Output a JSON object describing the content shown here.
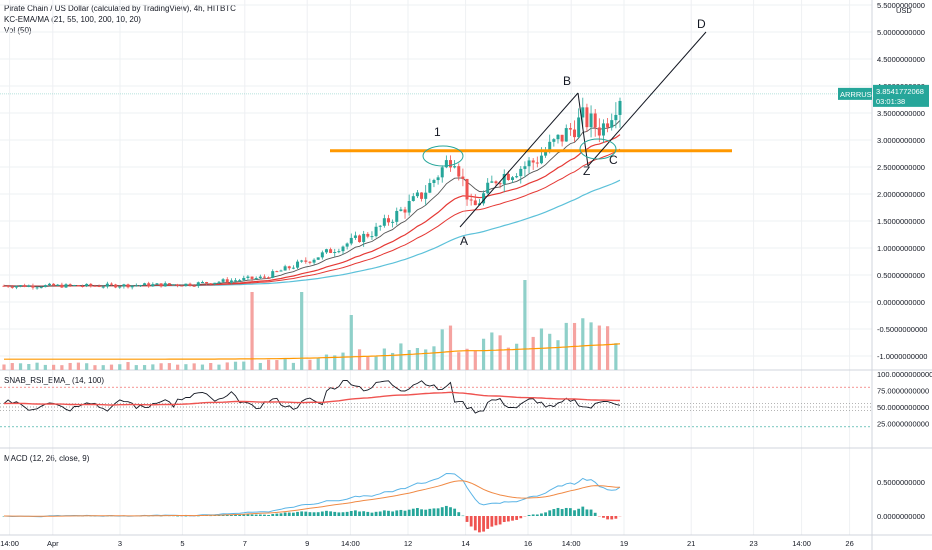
{
  "header": {
    "title": "Pirate Chain / US Dollar (calculated by TradingView), 4h, HITBTC",
    "indicator1": "KC-EMA/MA (21, 55, 100, 200, 10, 20)",
    "indicator2": "Vol (50)"
  },
  "price_axis": {
    "currency": "USD",
    "ticks": [
      "5.5000000000",
      "5.0000000000",
      "4.5000000000",
      "4.0000000000",
      "3.5000000000",
      "3.0000000000",
      "2.5000000000",
      "2.0000000000",
      "1.5000000000",
      "1.0000000000",
      "0.5000000000",
      "0.0000000000",
      "-0.5000000000",
      "-1.0000000000"
    ],
    "tick_values": [
      5.5,
      5.0,
      4.5,
      4.0,
      3.5,
      3.0,
      2.5,
      2.0,
      1.5,
      1.0,
      0.5,
      0.0,
      -0.5,
      -1.0
    ],
    "last_label": {
      "symbol": "ARRRUSD",
      "price": "3.8541772068",
      "countdown": "03:01:38"
    }
  },
  "rsi_panel": {
    "title": "SNAB_RSI_EMA_ (14, 100)",
    "ticks": [
      "100.0000000000",
      "75.0000000000",
      "50.0000000000",
      "25.0000000000"
    ],
    "tick_values": [
      100,
      75,
      50,
      25
    ]
  },
  "macd_panel": {
    "title": "MACD (12, 26, close, 9)",
    "ticks": [
      "0.5000000000",
      "0.0000000000"
    ],
    "tick_values": [
      0.5,
      0.0
    ]
  },
  "time_axis": {
    "labels": [
      "14:00",
      "Apr",
      "3",
      "5",
      "7",
      "9",
      "14:00",
      "12",
      "14",
      "16",
      "14:00",
      "19",
      "21",
      "23",
      "14:00",
      "26"
    ],
    "positions": [
      0.01,
      0.055,
      0.125,
      0.19,
      0.255,
      0.32,
      0.365,
      0.425,
      0.485,
      0.55,
      0.595,
      0.65,
      0.72,
      0.785,
      0.835,
      0.885
    ]
  },
  "annotations": {
    "labels": [
      "1",
      "A",
      "B",
      "Z",
      "C",
      "D"
    ]
  },
  "colors": {
    "up": "#26a69a",
    "down": "#ef5350",
    "orange": "#ff9800",
    "ema_black": "#131722",
    "ema_blue": "#5cc1d9",
    "ema_red": "#e53935",
    "vol_up": "#8fd0c9",
    "vol_down": "#f5a3a0",
    "macd_blue": "#5ab4e6",
    "macd_orange": "#f08a45"
  },
  "chart_data": {
    "type": "candlestick",
    "title": "Pirate Chain / US Dollar (calculated by TradingView), 4h, HITBTC",
    "x_range": [
      "Apr 1",
      "Apr 26"
    ],
    "y_range": [
      -1.2,
      5.6
    ],
    "resistance_level": 2.8,
    "last_price": 3.8541772068,
    "price_path": [
      {
        "t": 0,
        "p": 0.3
      },
      {
        "t": 0.15,
        "p": 0.3
      },
      {
        "t": 0.3,
        "p": 0.33
      },
      {
        "t": 0.42,
        "p": 0.45
      },
      {
        "t": 0.5,
        "p": 0.8
      },
      {
        "t": 0.6,
        "p": 1.3
      },
      {
        "t": 0.68,
        "p": 2.0
      },
      {
        "t": 0.73,
        "p": 2.75
      },
      {
        "t": 0.76,
        "p": 1.7
      },
      {
        "t": 0.8,
        "p": 2.3
      },
      {
        "t": 0.86,
        "p": 2.6
      },
      {
        "t": 0.9,
        "p": 3.0
      },
      {
        "t": 0.94,
        "p": 3.4
      },
      {
        "t": 0.97,
        "p": 3.2
      },
      {
        "t": 1.0,
        "p": 3.85
      }
    ]
  }
}
